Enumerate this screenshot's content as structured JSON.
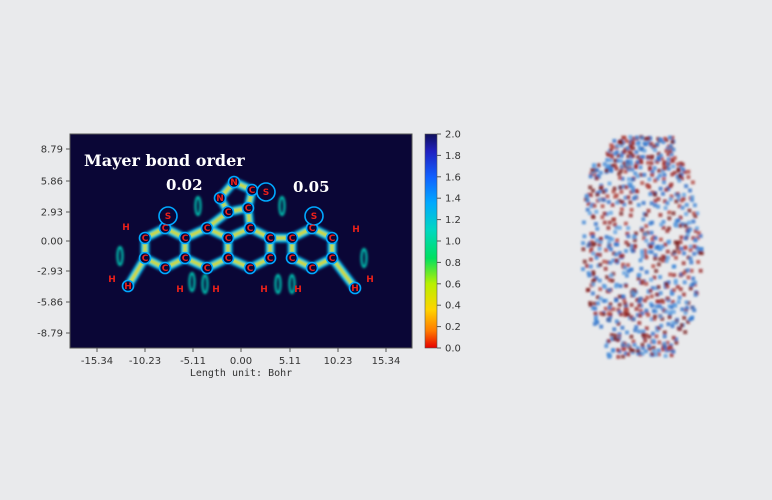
{
  "chart_data": {
    "type": "heatmap",
    "title": "Mayer bond order",
    "annotations": [
      "0.02",
      "0.05"
    ],
    "xlabel": "Length unit: Bohr",
    "ylabel": "",
    "x_ticks": [
      "-15.34",
      "-10.23",
      "-5.11",
      "0.00",
      "5.11",
      "10.23",
      "15.34"
    ],
    "y_ticks": [
      "8.79",
      "5.86",
      "2.93",
      "0.00",
      "-2.93",
      "-5.86",
      "-8.79"
    ],
    "colorbar": {
      "min": 0.0,
      "max": 2.0,
      "ticks": [
        "2.0",
        "1.8",
        "1.6",
        "1.4",
        "1.2",
        "1.0",
        "0.8",
        "0.6",
        "0.4",
        "0.2",
        "0.0"
      ],
      "colors": [
        "#e60000",
        "#ff7a00",
        "#ffd400",
        "#b8f000",
        "#00e060",
        "#00d8c0",
        "#00a8ff",
        "#1060ff",
        "#2020c0",
        "#10105a"
      ]
    },
    "atom_labels": [
      "H",
      "S",
      "N",
      "C"
    ]
  }
}
